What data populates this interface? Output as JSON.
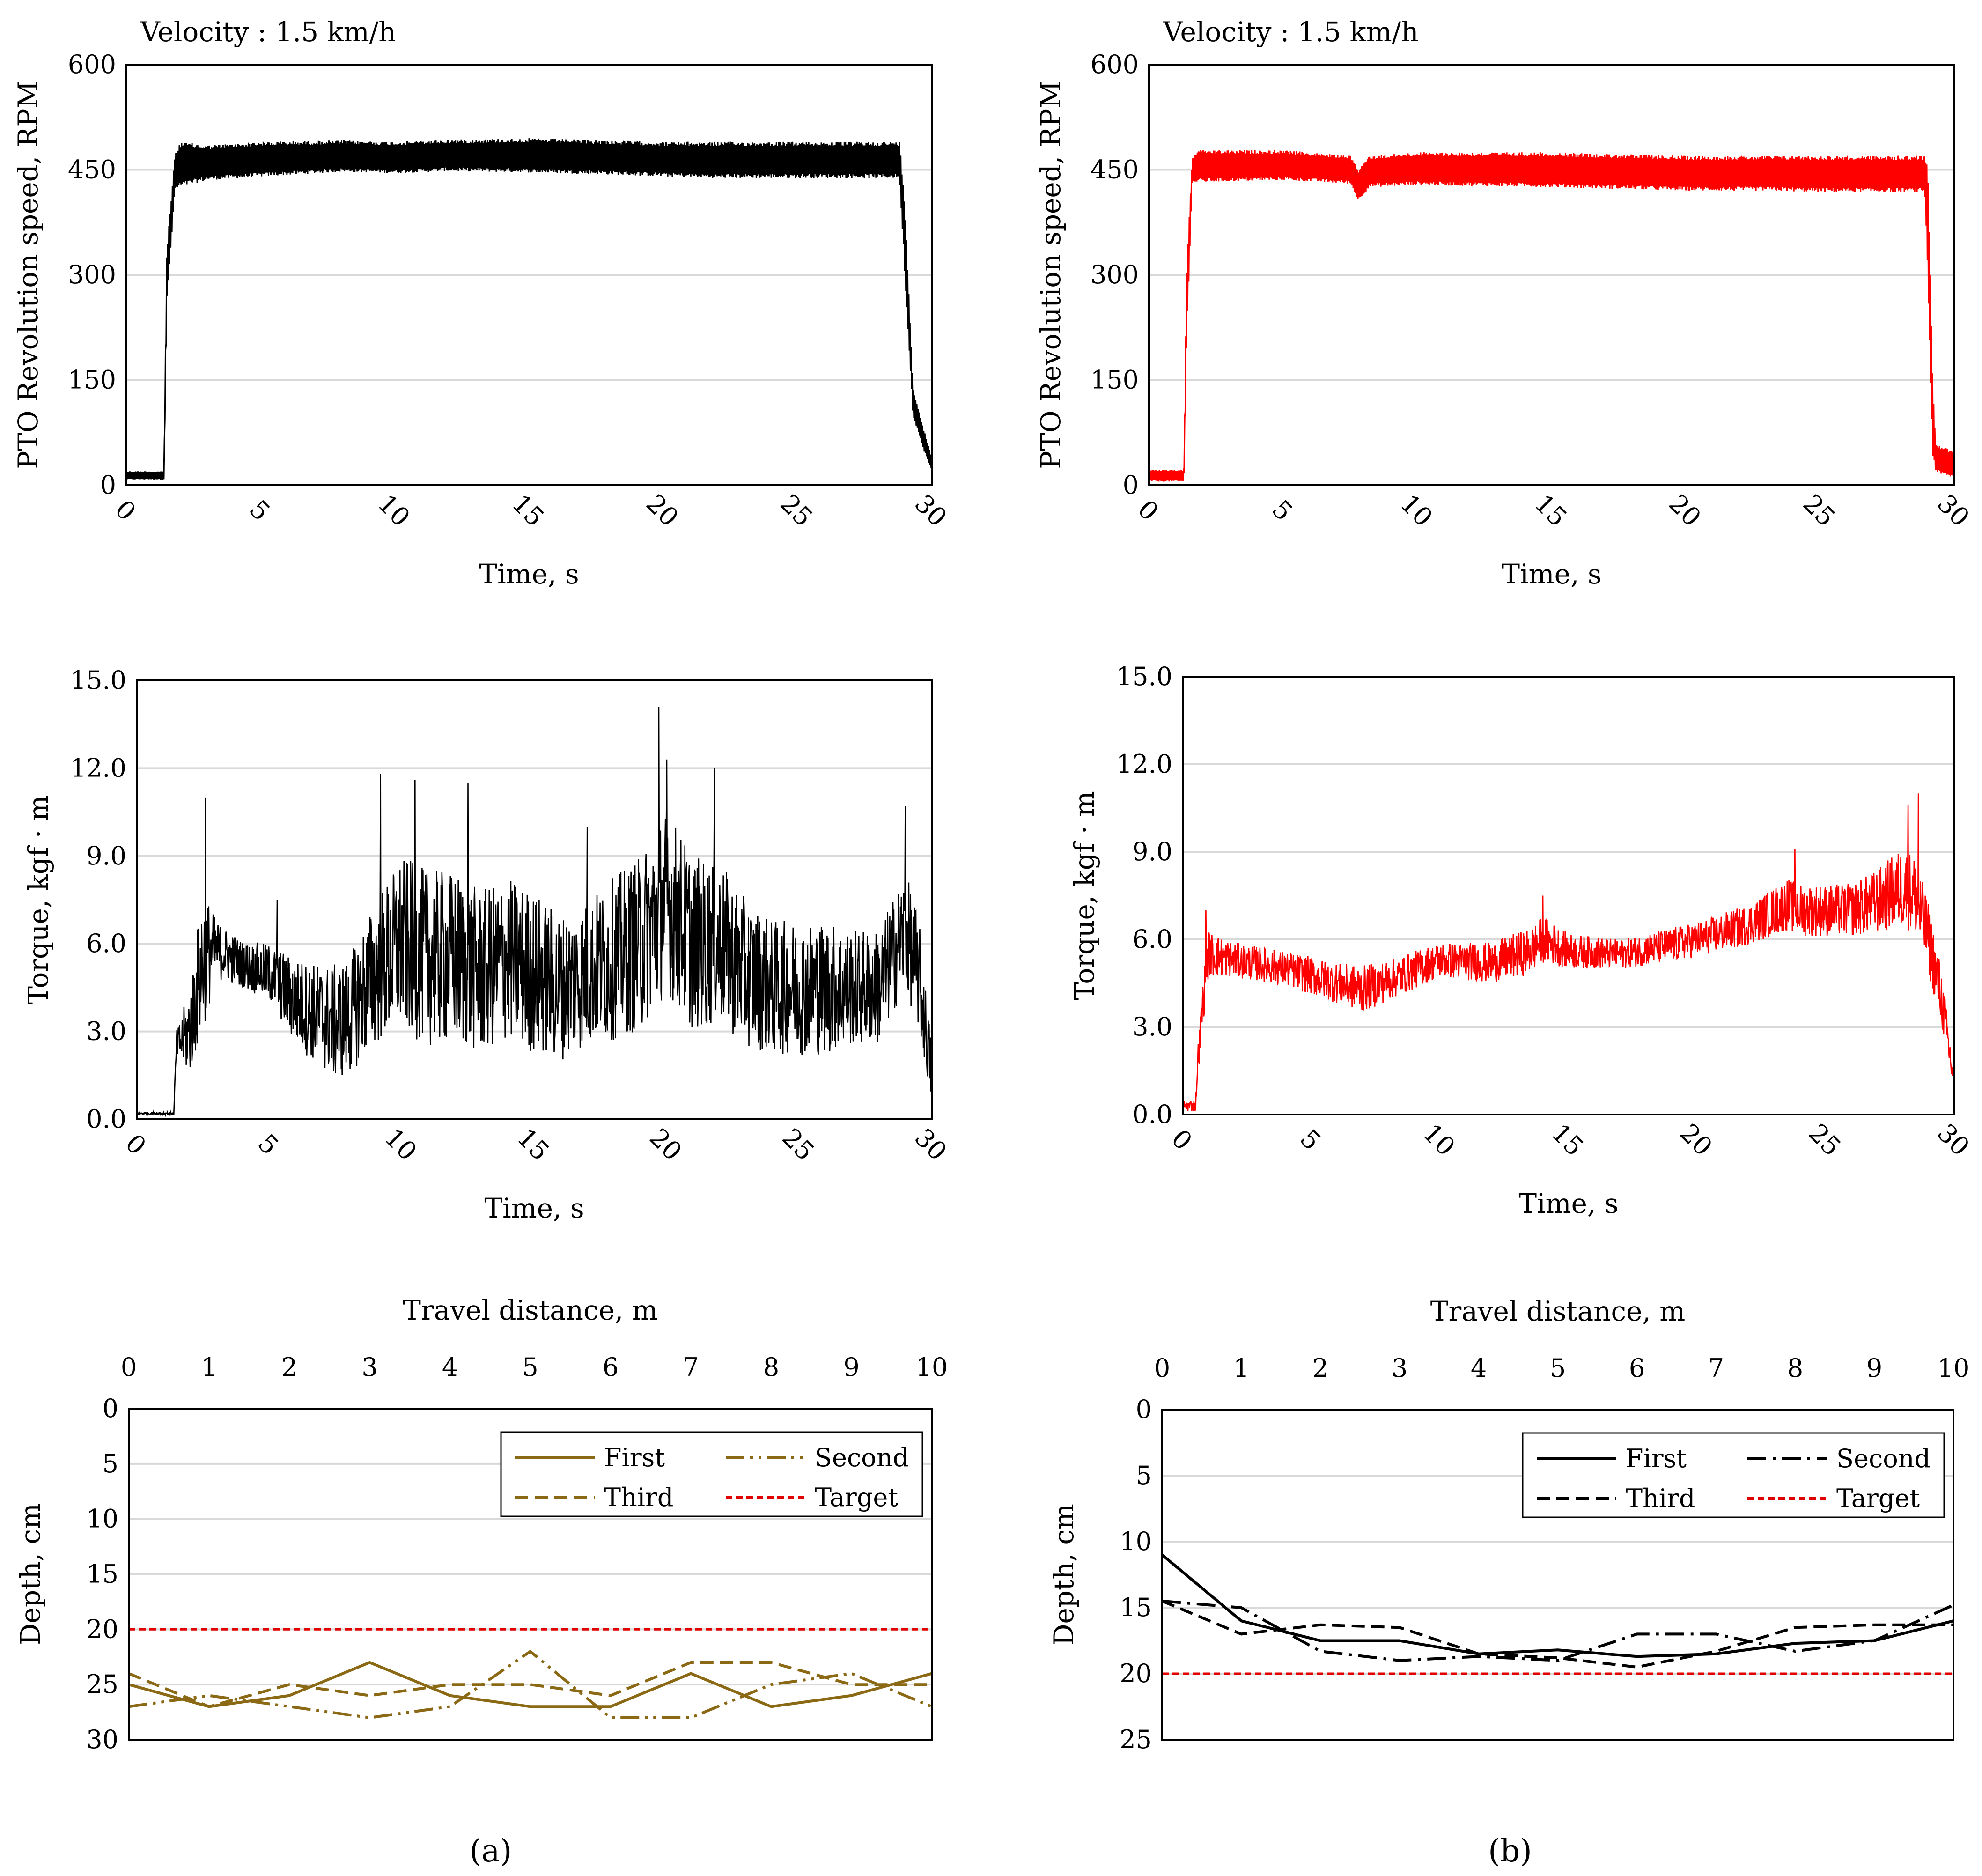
{
  "panel_labels": {
    "a": "(a)",
    "b": "(b)"
  },
  "colors": {
    "black": "#000000",
    "red": "#ff0000",
    "gold": "#8B6914",
    "target": "#e00000",
    "grid": "#d9d9d9"
  },
  "chart_data": [
    {
      "id": "a-rpm",
      "type": "line",
      "annotation": "Velocity : 1.5 km/h",
      "xlabel": "Time, s",
      "ylabel": "PTO Revolution speed, RPM",
      "xlim": [
        0,
        30
      ],
      "ylim": [
        0,
        600
      ],
      "xticks": [
        "0",
        "5",
        "10",
        "15",
        "20",
        "25",
        "30"
      ],
      "yticks": [
        "0",
        "150",
        "300",
        "450",
        "600"
      ],
      "color": "#000000",
      "envelope": {
        "t": [
          0,
          1.4,
          1.5,
          1.8,
          2.0,
          3,
          5,
          8,
          10,
          12,
          15,
          18,
          20,
          22,
          25,
          27,
          28.8,
          29.0,
          29.3,
          29.7,
          30
        ],
        "upper": [
          20,
          20,
          330,
          470,
          490,
          485,
          490,
          492,
          490,
          493,
          495,
          492,
          490,
          490,
          490,
          490,
          490,
          400,
          140,
          80,
          40
        ],
        "lower": [
          8,
          8,
          250,
          420,
          425,
          435,
          440,
          447,
          445,
          448,
          446,
          443,
          440,
          438,
          438,
          438,
          438,
          300,
          100,
          50,
          20
        ]
      }
    },
    {
      "id": "b-rpm",
      "type": "line",
      "annotation": "Velocity : 1.5 km/h",
      "xlabel": "Time, s",
      "ylabel": "PTO Revolution speed, RPM",
      "xlim": [
        0,
        30
      ],
      "ylim": [
        0,
        600
      ],
      "xticks": [
        "0",
        "5",
        "10",
        "15",
        "20",
        "25",
        "30"
      ],
      "yticks": [
        "0",
        "150",
        "300",
        "450",
        "600"
      ],
      "color": "#ff0000",
      "envelope": {
        "t": [
          0,
          1.3,
          1.4,
          1.6,
          1.8,
          5,
          7.5,
          7.8,
          8.2,
          10,
          15,
          20,
          23,
          25,
          28.9,
          29.0,
          29.2,
          29.3,
          29.5,
          30
        ],
        "upper": [
          22,
          22,
          300,
          465,
          478,
          478,
          470,
          450,
          470,
          475,
          475,
          470,
          470,
          470,
          470,
          470,
          150,
          60,
          55,
          50
        ],
        "lower": [
          5,
          5,
          200,
          430,
          432,
          435,
          430,
          405,
          425,
          428,
          425,
          420,
          420,
          418,
          418,
          300,
          40,
          20,
          15,
          10
        ]
      }
    },
    {
      "id": "a-torque",
      "type": "line",
      "xlabel": "Time, s",
      "ylabel": "Torque, kgf · m",
      "xlim": [
        0,
        30
      ],
      "ylim": [
        0,
        15
      ],
      "xticks": [
        "0",
        "5",
        "10",
        "15",
        "20",
        "25",
        "30"
      ],
      "yticks": [
        "0.0",
        "3.0",
        "6.0",
        "9.0",
        "12.0",
        "15.0"
      ],
      "color": "#000000",
      "trend": {
        "t": [
          0,
          1.4,
          1.5,
          2.0,
          2.5,
          3,
          4,
          5,
          6,
          7,
          7.5,
          8,
          9,
          10,
          11,
          12,
          13,
          14,
          15,
          16,
          17,
          18,
          19,
          20,
          21,
          22,
          23,
          24,
          25,
          26,
          27,
          28,
          29,
          29.5,
          30
        ],
        "mean": [
          0.2,
          0.2,
          2.5,
          3.0,
          5.5,
          5.8,
          5.3,
          5.0,
          4.0,
          3.5,
          3.3,
          3.5,
          5.0,
          6.0,
          5.5,
          5.5,
          5.0,
          5.5,
          5.0,
          4.5,
          5.0,
          5.5,
          6.0,
          7.5,
          6.0,
          6.0,
          5.0,
          4.5,
          4.5,
          4.5,
          4.5,
          4.5,
          6.5,
          5.0,
          1.5
        ],
        "amplitude": [
          0.05,
          0.05,
          0.5,
          1.5,
          2.5,
          1.0,
          0.8,
          1.0,
          1.5,
          1.8,
          2.0,
          2.0,
          2.5,
          3.0,
          3.0,
          3.0,
          2.8,
          2.8,
          2.8,
          2.5,
          2.5,
          2.8,
          3.0,
          3.2,
          3.0,
          2.8,
          2.5,
          2.3,
          2.3,
          2.3,
          2.0,
          2.0,
          2.0,
          2.0,
          1.0
        ]
      },
      "peaks": [
        {
          "t": 2.6,
          "v": 11.0
        },
        {
          "t": 5.3,
          "v": 7.5
        },
        {
          "t": 9.2,
          "v": 11.8
        },
        {
          "t": 10.5,
          "v": 11.6
        },
        {
          "t": 12.5,
          "v": 11.5
        },
        {
          "t": 17.0,
          "v": 10.0
        },
        {
          "t": 19.7,
          "v": 14.1
        },
        {
          "t": 20.0,
          "v": 12.3
        },
        {
          "t": 21.8,
          "v": 12.0
        },
        {
          "t": 29.0,
          "v": 10.7
        }
      ]
    },
    {
      "id": "b-torque",
      "type": "line",
      "xlabel": "Time, s",
      "ylabel": "Torque, kgf · m",
      "xlim": [
        0,
        30
      ],
      "ylim": [
        0,
        15
      ],
      "xticks": [
        "0",
        "5",
        "10",
        "15",
        "20",
        "25",
        "30"
      ],
      "yticks": [
        "0.0",
        "3.0",
        "6.0",
        "9.0",
        "12.0",
        "15.0"
      ],
      "color": "#ff0000",
      "trend": {
        "t": [
          0,
          0.5,
          0.6,
          0.8,
          1.0,
          2,
          4,
          6,
          7,
          8,
          10,
          12,
          13.5,
          14,
          15,
          17,
          19,
          20,
          22,
          23.5,
          24,
          25,
          26,
          27,
          28,
          28.5,
          29,
          29.5,
          30
        ],
        "mean": [
          0.3,
          0.3,
          2.0,
          4.0,
          5.5,
          5.3,
          5.0,
          4.5,
          4.3,
          4.6,
          5.3,
          5.2,
          5.6,
          6.0,
          5.6,
          5.5,
          5.8,
          6.0,
          6.5,
          7.2,
          7.0,
          7.0,
          7.0,
          7.3,
          7.8,
          7.5,
          6.0,
          4.0,
          1.0
        ],
        "amplitude": [
          0.2,
          0.2,
          0.5,
          0.8,
          0.8,
          0.6,
          0.6,
          0.7,
          0.8,
          0.7,
          0.6,
          0.7,
          0.8,
          0.8,
          0.6,
          0.5,
          0.6,
          0.6,
          0.7,
          0.9,
          0.9,
          0.9,
          0.9,
          1.1,
          1.4,
          1.4,
          1.2,
          1.0,
          0.5
        ]
      },
      "peaks": [
        {
          "t": 0.9,
          "v": 7.0
        },
        {
          "t": 14.0,
          "v": 7.5
        },
        {
          "t": 23.8,
          "v": 9.1
        },
        {
          "t": 28.2,
          "v": 10.6
        },
        {
          "t": 28.6,
          "v": 11.0
        }
      ]
    },
    {
      "id": "a-depth",
      "type": "line",
      "xlabel": "Travel distance, m",
      "ylabel": "Depth, cm",
      "xlim": [
        0,
        10
      ],
      "ylim": [
        0,
        30
      ],
      "y_inverted": true,
      "xticks": [
        "0",
        "1",
        "2",
        "3",
        "4",
        "5",
        "6",
        "7",
        "8",
        "9",
        "10"
      ],
      "yticks": [
        "0",
        "5",
        "10",
        "15",
        "20",
        "25",
        "30"
      ],
      "x": [
        0,
        1,
        2,
        3,
        4,
        5,
        6,
        7,
        8,
        9,
        10
      ],
      "series": [
        {
          "name": "First",
          "values": [
            25,
            27,
            26,
            23,
            26,
            27,
            27,
            24,
            27,
            26,
            24
          ],
          "color": "#8B6914",
          "dash": "solid"
        },
        {
          "name": "Second",
          "values": [
            27,
            26,
            27,
            28,
            27,
            22,
            28,
            28,
            25,
            24,
            27
          ],
          "color": "#8B6914",
          "dash": "dashdotdot"
        },
        {
          "name": "Third",
          "values": [
            24,
            27,
            25,
            26,
            25,
            25,
            26,
            23,
            23,
            25,
            25
          ],
          "color": "#8B6914",
          "dash": "dashed"
        },
        {
          "name": "Target",
          "values": [
            20,
            20,
            20,
            20,
            20,
            20,
            20,
            20,
            20,
            20,
            20
          ],
          "color": "#e00000",
          "dash": "dotted"
        }
      ],
      "legend": "top-right"
    },
    {
      "id": "b-depth",
      "type": "line",
      "xlabel": "Travel distance, m",
      "ylabel": "Depth, cm",
      "xlim": [
        0,
        10
      ],
      "ylim": [
        0,
        25
      ],
      "y_inverted": true,
      "xticks": [
        "0",
        "1",
        "2",
        "3",
        "4",
        "5",
        "6",
        "7",
        "8",
        "9",
        "10"
      ],
      "yticks": [
        "0",
        "5",
        "10",
        "15",
        "20",
        "25"
      ],
      "x": [
        0,
        1,
        2,
        3,
        4,
        5,
        6,
        7,
        8,
        9,
        10
      ],
      "series": [
        {
          "name": "First",
          "values": [
            11,
            16,
            17.5,
            17.5,
            18.5,
            18.2,
            18.7,
            18.5,
            17.7,
            17.5,
            16
          ],
          "color": "#000000",
          "dash": "solid"
        },
        {
          "name": "Second",
          "values": [
            14.5,
            15,
            18.3,
            19,
            18.7,
            19,
            17,
            17,
            18.3,
            17.5,
            14.8
          ],
          "color": "#000000",
          "dash": "dashdot"
        },
        {
          "name": "Third",
          "values": [
            14.5,
            17,
            16.3,
            16.5,
            18.5,
            18.8,
            19.5,
            18.3,
            16.5,
            16.3,
            16.3
          ],
          "color": "#000000",
          "dash": "dashed"
        },
        {
          "name": "Target",
          "values": [
            20,
            20,
            20,
            20,
            20,
            20,
            20,
            20,
            20,
            20,
            20
          ],
          "color": "#e00000",
          "dash": "dotted"
        }
      ],
      "legend": "top-right"
    }
  ]
}
